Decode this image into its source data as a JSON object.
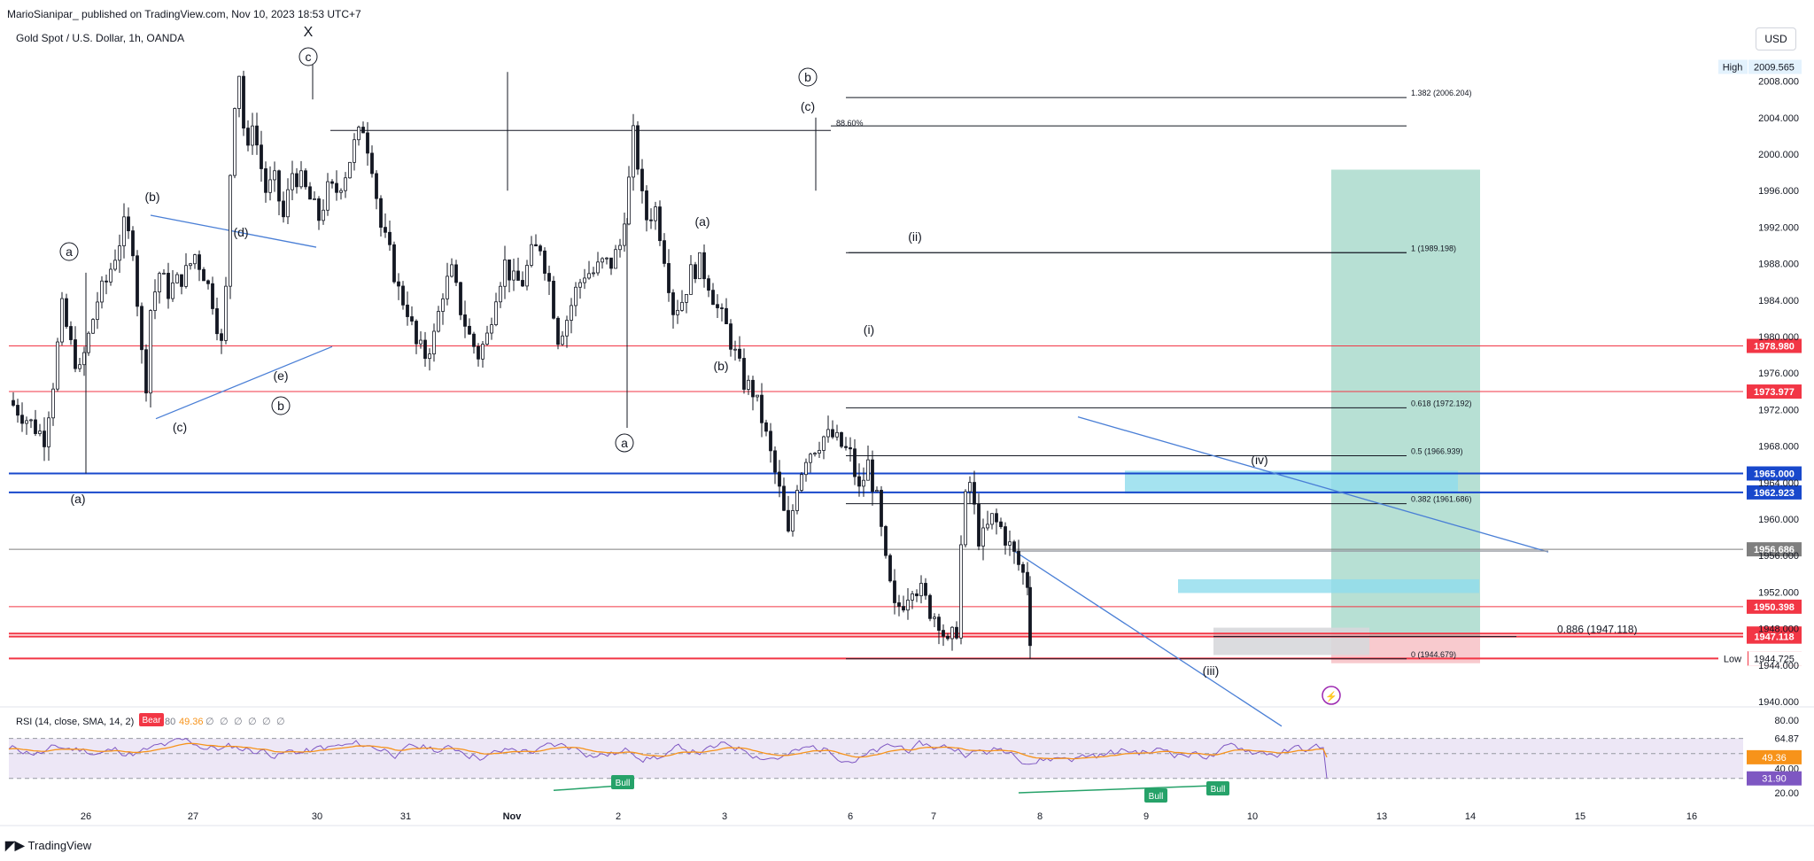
{
  "header": {
    "published": "MarioSianipar_ published on TradingView.com, Nov 10, 2023 18:53 UTC+7",
    "symbol": "Gold Spot / U.S. Dollar, 1h, OANDA",
    "currency": "USD"
  },
  "footer": {
    "brand": "TradingView"
  },
  "colors": {
    "up": "#131722",
    "down": "#131722",
    "red_line": "#f23645",
    "blue_line": "#1848cc",
    "trend": "#4a7fd6",
    "fib": "#131722",
    "target_zone": "#9fd6c6",
    "stop_zone": "#f7c1c5",
    "cyan_zone": "#8fdcec",
    "gray_zone": "#d7d8db",
    "rsi": "#7e57c2",
    "rsi_ma": "#f7931a",
    "rsi_band": "#ede7f6",
    "bull": "#26a269",
    "bear": "#f23645"
  },
  "chart_data": {
    "type": "candlestick",
    "title": "Gold Spot / U.S. Dollar, 1h, OANDA",
    "ylim": [
      1940,
      2012
    ],
    "price_ticks": [
      "1940.000",
      "1944.000",
      "1948.000",
      "1952.000",
      "1956.000",
      "1960.000",
      "1964.000",
      "1968.000",
      "1972.000",
      "1976.000",
      "1980.000",
      "1984.000",
      "1988.000",
      "1992.000",
      "1996.000",
      "2000.000",
      "2004.000",
      "2008.000"
    ],
    "x_labels": [
      "26",
      "27",
      "30",
      "31",
      "Nov",
      "2",
      "3",
      "6",
      "7",
      "8",
      "9",
      "10",
      "13",
      "14",
      "15",
      "16"
    ],
    "close_path": [
      [
        0,
        1973
      ],
      [
        10,
        1972
      ],
      [
        20,
        1971
      ],
      [
        30,
        1970
      ],
      [
        40,
        1969
      ],
      [
        50,
        1975
      ],
      [
        60,
        1983
      ],
      [
        70,
        1979
      ],
      [
        80,
        1976
      ],
      [
        90,
        1980
      ],
      [
        100,
        1984
      ],
      [
        110,
        1986
      ],
      [
        120,
        1989
      ],
      [
        130,
        1992
      ],
      [
        140,
        1990
      ],
      [
        145,
        1984
      ],
      [
        150,
        1978
      ],
      [
        155,
        1975
      ],
      [
        160,
        1983
      ],
      [
        170,
        1987
      ],
      [
        180,
        1985
      ],
      [
        190,
        1986
      ],
      [
        200,
        1987
      ],
      [
        210,
        1989
      ],
      [
        220,
        1987
      ],
      [
        230,
        1984
      ],
      [
        240,
        1979
      ],
      [
        245,
        1985
      ],
      [
        250,
        1998
      ],
      [
        255,
        2006
      ],
      [
        260,
        2009
      ],
      [
        265,
        2003
      ],
      [
        270,
        2000
      ],
      [
        275,
        2004
      ],
      [
        280,
        2001
      ],
      [
        290,
        1996
      ],
      [
        300,
        1997
      ],
      [
        310,
        1993
      ],
      [
        320,
        1998
      ],
      [
        330,
        1997
      ],
      [
        340,
        1995
      ],
      [
        350,
        1993
      ],
      [
        360,
        1996
      ],
      [
        370,
        1996
      ],
      [
        380,
        1998
      ],
      [
        390,
        2001
      ],
      [
        400,
        2003
      ],
      [
        410,
        1999
      ],
      [
        420,
        1992
      ],
      [
        430,
        1989
      ],
      [
        440,
        1985
      ],
      [
        450,
        1983
      ],
      [
        460,
        1979
      ],
      [
        470,
        1978
      ],
      [
        480,
        1980
      ],
      [
        490,
        1985
      ],
      [
        500,
        1987
      ],
      [
        510,
        1983
      ],
      [
        520,
        1980
      ],
      [
        530,
        1978
      ],
      [
        540,
        1980
      ],
      [
        550,
        1985
      ],
      [
        560,
        1988
      ],
      [
        570,
        1986
      ],
      [
        580,
        1986
      ],
      [
        590,
        1989
      ],
      [
        600,
        1990
      ],
      [
        610,
        1986
      ],
      [
        620,
        1980
      ],
      [
        630,
        1982
      ],
      [
        640,
        1985
      ],
      [
        650,
        1987
      ],
      [
        660,
        1987
      ],
      [
        670,
        1988
      ],
      [
        680,
        1988
      ],
      [
        690,
        1990
      ],
      [
        700,
        1997
      ],
      [
        705,
        2002
      ],
      [
        710,
        1999
      ],
      [
        715,
        1995
      ],
      [
        720,
        1993
      ],
      [
        730,
        1994
      ],
      [
        740,
        1989
      ],
      [
        750,
        1983
      ],
      [
        760,
        1984
      ],
      [
        770,
        1987
      ],
      [
        780,
        1988
      ],
      [
        790,
        1986
      ],
      [
        800,
        1983
      ],
      [
        810,
        1981
      ],
      [
        820,
        1978
      ],
      [
        830,
        1975
      ],
      [
        840,
        1974
      ],
      [
        850,
        1971
      ],
      [
        860,
        1967
      ],
      [
        870,
        1963
      ],
      [
        880,
        1958
      ],
      [
        890,
        1964
      ],
      [
        900,
        1967
      ],
      [
        910,
        1968
      ],
      [
        920,
        1969
      ],
      [
        930,
        1969
      ],
      [
        940,
        1968
      ],
      [
        950,
        1967
      ],
      [
        960,
        1963
      ],
      [
        970,
        1966
      ],
      [
        980,
        1962
      ],
      [
        990,
        1955
      ],
      [
        1000,
        1950
      ],
      [
        1010,
        1951
      ],
      [
        1020,
        1953
      ],
      [
        1030,
        1952
      ],
      [
        1040,
        1950
      ],
      [
        1050,
        1949
      ],
      [
        1060,
        1946
      ],
      [
        1070,
        1948
      ],
      [
        1075,
        1957
      ],
      [
        1080,
        1962
      ],
      [
        1085,
        1964
      ],
      [
        1090,
        1961
      ],
      [
        1095,
        1958
      ],
      [
        1100,
        1958
      ],
      [
        1110,
        1960
      ],
      [
        1120,
        1959
      ],
      [
        1130,
        1957
      ],
      [
        1140,
        1955
      ],
      [
        1150,
        1953
      ],
      [
        1153,
        1947.1
      ]
    ],
    "horizontal_levels": [
      {
        "price": "1978.980",
        "color": "#f23645"
      },
      {
        "price": "1973.977",
        "color": "#f23645"
      },
      {
        "price": "1965.000",
        "color": "#1848cc"
      },
      {
        "price": "1962.923",
        "color": "#1848cc"
      },
      {
        "price": "1956.686",
        "color": "#7f7f7f"
      },
      {
        "price": "1950.398",
        "color": "#f23645"
      },
      {
        "price": "1947.455",
        "color": "#f23645"
      },
      {
        "price": "1947.118",
        "color": "#f23645"
      },
      {
        "price": "1944.724",
        "color": "#f23645"
      }
    ],
    "high_label": {
      "text": "High",
      "value": "2009.565"
    },
    "low_label": {
      "text": "Low",
      "value": "1944.725"
    },
    "fib_levels": [
      {
        "label": "1.382 (2006.204)",
        "price": 2006.204
      },
      {
        "label": "1 (1989.198)",
        "price": 1989.198
      },
      {
        "label": "0.618 (1972.192)",
        "price": 1972.192
      },
      {
        "label": "0.5 (1966.939)",
        "price": 1966.939
      },
      {
        "label": "0.382 (1961.686)",
        "price": 1961.686
      },
      {
        "label": "0 (1944.679)",
        "price": 1944.679
      }
    ],
    "fib_extra": {
      "label": "0.886 (1947.118)",
      "price": 1947.118
    },
    "pct_label": "88.60%",
    "wave_labels": [
      "X",
      "c",
      "(c)",
      "(b)",
      "(d)",
      "(e)",
      "a",
      "(a)",
      "b",
      "(c)",
      "a",
      "(a)",
      "(b)",
      "(b)",
      "(c)",
      "b",
      "(ii)",
      "(i)",
      "(iv)",
      "(iii)"
    ],
    "rsi": {
      "label": "RSI (14, close, SMA, 14, 2)",
      "signal": "Bear",
      "values": [
        "80",
        "49.36",
        "∅",
        "∅",
        "∅",
        "∅",
        "∅",
        "∅"
      ],
      "ticks": [
        "80.00",
        "64.87",
        "52.40",
        "40.00",
        "20.00"
      ],
      "current": "49.36",
      "rsi_value": "31.90",
      "bull_tags": [
        "Bull",
        "Bull",
        "Bull"
      ]
    }
  }
}
